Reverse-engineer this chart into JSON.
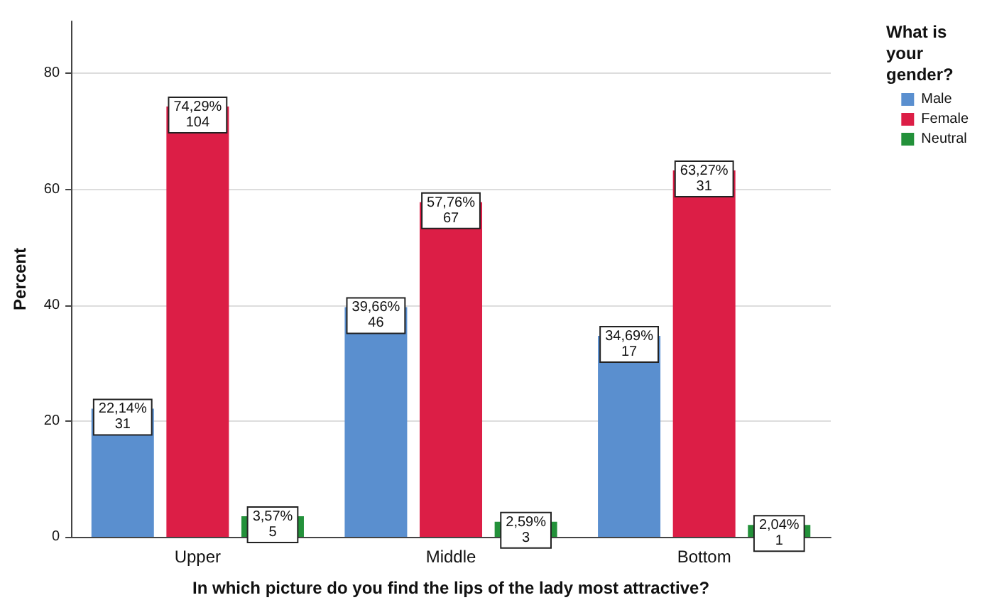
{
  "chart_data": {
    "type": "bar",
    "xlabel": "In which picture do you find the lips of the lady most attractive?",
    "ylabel": "Percent",
    "legend_title": "What is your gender?",
    "categories": [
      "Upper",
      "Middle",
      "Bottom"
    ],
    "series": [
      {
        "name": "Male",
        "color": "#5a8fcf",
        "values": [
          22.14,
          39.66,
          34.69
        ],
        "value_labels": [
          "22,14%\n31",
          "39,66%\n46",
          "34,69%\n17"
        ]
      },
      {
        "name": "Female",
        "color": "#dc1e46",
        "values": [
          74.29,
          57.76,
          63.27
        ],
        "value_labels": [
          "74,29%\n104",
          "57,76%\n67",
          "63,27%\n31"
        ]
      },
      {
        "name": "Neutral",
        "color": "#23913a",
        "values": [
          3.57,
          2.59,
          2.04
        ],
        "value_labels": [
          "3,57%\n5",
          "2,59%\n3",
          "2,04%\n1"
        ]
      }
    ],
    "ylim": [
      0,
      89
    ],
    "yticks": [
      0,
      20,
      40,
      60,
      80
    ],
    "grid": "y",
    "legend": "right"
  }
}
